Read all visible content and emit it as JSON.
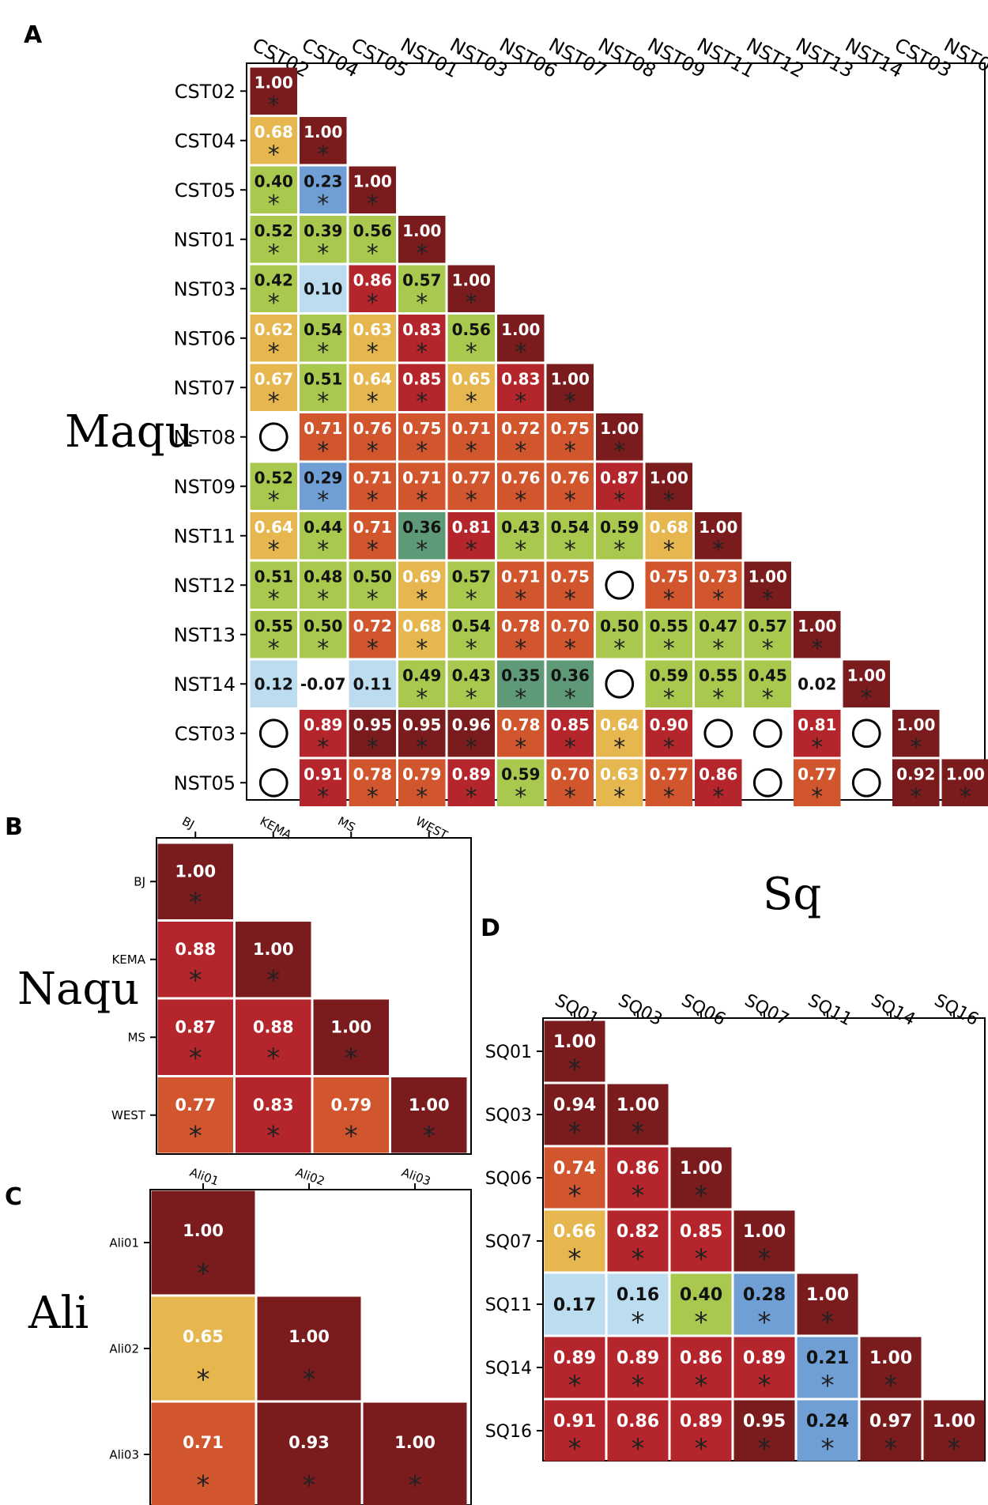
{
  "colors": {
    "c100": "#7a1c1e",
    "c90": "#b5262c",
    "c80": "#d1562d",
    "c70": "#e6b74f",
    "c60": "#a8c94d",
    "c45": "#5f9a78",
    "c30": "#6f9fd4",
    "c20": "#bcdcf0"
  },
  "chart_data": [
    {
      "type": "heatmap",
      "panel": "A",
      "title": "Maqu",
      "labels": [
        "CST02",
        "CST04",
        "CST05",
        "NST01",
        "NST03",
        "NST06",
        "NST07",
        "NST08",
        "NST09",
        "NST11",
        "NST12",
        "NST13",
        "NST14",
        "CST03",
        "NST05"
      ],
      "missing_marker": "◯",
      "rows": [
        [
          [
            "1.00",
            1
          ]
        ],
        [
          [
            "0.68",
            1
          ],
          [
            "1.00",
            1
          ]
        ],
        [
          [
            "0.40",
            1
          ],
          [
            "0.23",
            1
          ],
          [
            "1.00",
            1
          ]
        ],
        [
          [
            "0.52",
            1
          ],
          [
            "0.39",
            1
          ],
          [
            "0.56",
            1
          ],
          [
            "1.00",
            1
          ]
        ],
        [
          [
            "0.42",
            1
          ],
          [
            "0.10",
            0
          ],
          [
            "0.86",
            1
          ],
          [
            "0.57",
            1
          ],
          [
            "1.00",
            1
          ]
        ],
        [
          [
            "0.62",
            1
          ],
          [
            "0.54",
            1
          ],
          [
            "0.63",
            1
          ],
          [
            "0.83",
            1
          ],
          [
            "0.56",
            1
          ],
          [
            "1.00",
            1
          ]
        ],
        [
          [
            "0.67",
            1
          ],
          [
            "0.51",
            1
          ],
          [
            "0.64",
            1
          ],
          [
            "0.85",
            1
          ],
          [
            "0.65",
            1
          ],
          [
            "0.83",
            1
          ],
          [
            "1.00",
            1
          ]
        ],
        [
          [
            "",
            0
          ],
          [
            "0.71",
            1
          ],
          [
            "0.76",
            1
          ],
          [
            "0.75",
            1
          ],
          [
            "0.71",
            1
          ],
          [
            "0.72",
            1
          ],
          [
            "0.75",
            1
          ],
          [
            "1.00",
            1
          ]
        ],
        [
          [
            "0.52",
            1
          ],
          [
            "0.29",
            1
          ],
          [
            "0.71",
            1
          ],
          [
            "0.71",
            1
          ],
          [
            "0.77",
            1
          ],
          [
            "0.76",
            1
          ],
          [
            "0.76",
            1
          ],
          [
            "0.87",
            1
          ],
          [
            "1.00",
            1
          ]
        ],
        [
          [
            "0.64",
            1
          ],
          [
            "0.44",
            1
          ],
          [
            "0.71",
            1
          ],
          [
            "0.36",
            1
          ],
          [
            "0.81",
            1
          ],
          [
            "0.43",
            1
          ],
          [
            "0.54",
            1
          ],
          [
            "0.59",
            1
          ],
          [
            "0.68",
            1
          ],
          [
            "1.00",
            1
          ]
        ],
        [
          [
            "0.51",
            1
          ],
          [
            "0.48",
            1
          ],
          [
            "0.50",
            1
          ],
          [
            "0.69",
            1
          ],
          [
            "0.57",
            1
          ],
          [
            "0.71",
            1
          ],
          [
            "0.75",
            1
          ],
          [
            "",
            0
          ],
          [
            "0.75",
            1
          ],
          [
            "0.73",
            1
          ],
          [
            "1.00",
            1
          ]
        ],
        [
          [
            "0.55",
            1
          ],
          [
            "0.50",
            1
          ],
          [
            "0.72",
            1
          ],
          [
            "0.68",
            1
          ],
          [
            "0.54",
            1
          ],
          [
            "0.78",
            1
          ],
          [
            "0.70",
            1
          ],
          [
            "0.50",
            1
          ],
          [
            "0.55",
            1
          ],
          [
            "0.47",
            1
          ],
          [
            "0.57",
            1
          ],
          [
            "1.00",
            1
          ]
        ],
        [
          [
            "0.12",
            0
          ],
          [
            "-0.07",
            0
          ],
          [
            "0.11",
            0
          ],
          [
            "0.49",
            1
          ],
          [
            "0.43",
            1
          ],
          [
            "0.35",
            1
          ],
          [
            "0.36",
            1
          ],
          [
            "",
            0
          ],
          [
            "0.59",
            1
          ],
          [
            "0.55",
            1
          ],
          [
            "0.45",
            1
          ],
          [
            "0.02",
            0
          ],
          [
            "1.00",
            1
          ]
        ],
        [
          [
            "",
            0
          ],
          [
            "0.89",
            1
          ],
          [
            "0.95",
            1
          ],
          [
            "0.95",
            1
          ],
          [
            "0.96",
            1
          ],
          [
            "0.78",
            1
          ],
          [
            "0.85",
            1
          ],
          [
            "0.64",
            1
          ],
          [
            "0.90",
            1
          ],
          [
            "",
            0
          ],
          [
            "",
            0
          ],
          [
            "0.81",
            1
          ],
          [
            "",
            0
          ],
          [
            "1.00",
            1
          ]
        ],
        [
          [
            "",
            0
          ],
          [
            "0.91",
            1
          ],
          [
            "0.78",
            1
          ],
          [
            "0.79",
            1
          ],
          [
            "0.89",
            1
          ],
          [
            "0.59",
            1
          ],
          [
            "0.70",
            1
          ],
          [
            "0.63",
            1
          ],
          [
            "0.77",
            1
          ],
          [
            "0.86",
            1
          ],
          [
            "",
            0
          ],
          [
            "0.77",
            1
          ],
          [
            "",
            0
          ],
          [
            "0.92",
            1
          ],
          [
            "1.00",
            1
          ]
        ]
      ]
    },
    {
      "type": "heatmap",
      "panel": "B",
      "title": "Naqu",
      "labels": [
        "BJ",
        "KEMA",
        "MS",
        "WEST"
      ],
      "rows": [
        [
          [
            "1.00",
            1
          ]
        ],
        [
          [
            "0.88",
            1
          ],
          [
            "1.00",
            1
          ]
        ],
        [
          [
            "0.87",
            1
          ],
          [
            "0.88",
            1
          ],
          [
            "1.00",
            1
          ]
        ],
        [
          [
            "0.77",
            1
          ],
          [
            "0.83",
            1
          ],
          [
            "0.79",
            1
          ],
          [
            "1.00",
            1
          ]
        ]
      ]
    },
    {
      "type": "heatmap",
      "panel": "C",
      "title": "Ali",
      "labels": [
        "Ali01",
        "Ali02",
        "Ali03"
      ],
      "rows": [
        [
          [
            "1.00",
            1
          ]
        ],
        [
          [
            "0.65",
            1
          ],
          [
            "1.00",
            1
          ]
        ],
        [
          [
            "0.71",
            1
          ],
          [
            "0.93",
            1
          ],
          [
            "1.00",
            1
          ]
        ]
      ]
    },
    {
      "type": "heatmap",
      "panel": "D",
      "title": "Sq",
      "labels": [
        "SQ01",
        "SQ03",
        "SQ06",
        "SQ07",
        "SQ11",
        "SQ14",
        "SQ16"
      ],
      "rows": [
        [
          [
            "1.00",
            1
          ]
        ],
        [
          [
            "0.94",
            1
          ],
          [
            "1.00",
            1
          ]
        ],
        [
          [
            "0.74",
            1
          ],
          [
            "0.86",
            1
          ],
          [
            "1.00",
            1
          ]
        ],
        [
          [
            "0.66",
            1
          ],
          [
            "0.82",
            1
          ],
          [
            "0.85",
            1
          ],
          [
            "1.00",
            1
          ]
        ],
        [
          [
            "0.17",
            0
          ],
          [
            "0.16",
            1
          ],
          [
            "0.40",
            1
          ],
          [
            "0.28",
            1
          ],
          [
            "1.00",
            1
          ]
        ],
        [
          [
            "0.89",
            1
          ],
          [
            "0.89",
            1
          ],
          [
            "0.86",
            1
          ],
          [
            "0.89",
            1
          ],
          [
            "0.21",
            1
          ],
          [
            "1.00",
            1
          ]
        ],
        [
          [
            "0.91",
            1
          ],
          [
            "0.86",
            1
          ],
          [
            "0.89",
            1
          ],
          [
            "0.95",
            1
          ],
          [
            "0.24",
            1
          ],
          [
            "0.97",
            1
          ],
          [
            "1.00",
            1
          ]
        ]
      ]
    }
  ]
}
